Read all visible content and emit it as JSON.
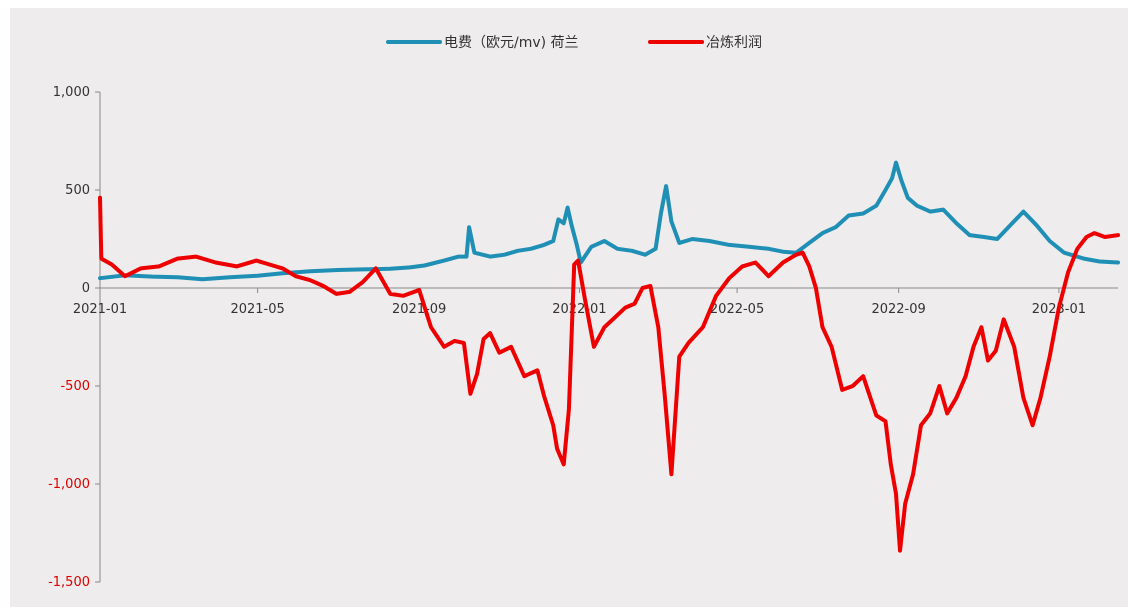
{
  "chart_data": {
    "type": "line",
    "title": "",
    "xlabel": "",
    "ylabel": "",
    "ylim": [
      -1500,
      1000
    ],
    "y_ticks": [
      1000,
      500,
      0,
      -500,
      -1000,
      -1500
    ],
    "y_tick_labels": [
      "1,000",
      "500",
      "0",
      "-500",
      "-1,000",
      "-1,500"
    ],
    "x_range": [
      "2021-01-01",
      "2023-02-15"
    ],
    "x_ticks": [
      "2021-01-01",
      "2021-05-01",
      "2021-09-01",
      "2022-01-01",
      "2022-05-01",
      "2022-09-01",
      "2023-01-01"
    ],
    "x_tick_labels": [
      "2021-01",
      "2021-05",
      "2021-09",
      "2022-01",
      "2022-05",
      "2022-09",
      "2023-01"
    ],
    "legend_position": "top-center",
    "series": [
      {
        "name": "电费（欧元/mv) 荷兰",
        "color": "#1f8fb5",
        "points": [
          [
            "2021-01-01",
            50
          ],
          [
            "2021-01-20",
            65
          ],
          [
            "2021-02-10",
            58
          ],
          [
            "2021-03-01",
            55
          ],
          [
            "2021-03-20",
            45
          ],
          [
            "2021-04-10",
            55
          ],
          [
            "2021-05-01",
            62
          ],
          [
            "2021-05-20",
            75
          ],
          [
            "2021-06-10",
            85
          ],
          [
            "2021-07-01",
            92
          ],
          [
            "2021-07-20",
            95
          ],
          [
            "2021-08-10",
            98
          ],
          [
            "2021-08-25",
            105
          ],
          [
            "2021-09-05",
            115
          ],
          [
            "2021-09-20",
            140
          ],
          [
            "2021-10-01",
            160
          ],
          [
            "2021-10-07",
            160
          ],
          [
            "2021-10-09",
            310
          ],
          [
            "2021-10-13",
            180
          ],
          [
            "2021-10-25",
            160
          ],
          [
            "2021-11-05",
            170
          ],
          [
            "2021-11-15",
            190
          ],
          [
            "2021-11-25",
            200
          ],
          [
            "2021-12-05",
            220
          ],
          [
            "2021-12-12",
            240
          ],
          [
            "2021-12-16",
            350
          ],
          [
            "2021-12-20",
            330
          ],
          [
            "2021-12-23",
            410
          ],
          [
            "2021-12-26",
            320
          ],
          [
            "2021-12-30",
            220
          ],
          [
            "2022-01-02",
            130
          ],
          [
            "2022-01-10",
            210
          ],
          [
            "2022-01-20",
            240
          ],
          [
            "2022-01-30",
            200
          ],
          [
            "2022-02-10",
            190
          ],
          [
            "2022-02-20",
            170
          ],
          [
            "2022-02-28",
            200
          ],
          [
            "2022-03-04",
            380
          ],
          [
            "2022-03-08",
            520
          ],
          [
            "2022-03-12",
            340
          ],
          [
            "2022-03-18",
            230
          ],
          [
            "2022-03-28",
            250
          ],
          [
            "2022-04-10",
            240
          ],
          [
            "2022-04-25",
            220
          ],
          [
            "2022-05-10",
            210
          ],
          [
            "2022-05-25",
            200
          ],
          [
            "2022-06-05",
            185
          ],
          [
            "2022-06-15",
            180
          ],
          [
            "2022-06-25",
            230
          ],
          [
            "2022-07-05",
            280
          ],
          [
            "2022-07-15",
            310
          ],
          [
            "2022-07-25",
            370
          ],
          [
            "2022-08-05",
            380
          ],
          [
            "2022-08-15",
            420
          ],
          [
            "2022-08-22",
            500
          ],
          [
            "2022-08-27",
            560
          ],
          [
            "2022-08-30",
            640
          ],
          [
            "2022-09-03",
            550
          ],
          [
            "2022-09-08",
            460
          ],
          [
            "2022-09-15",
            420
          ],
          [
            "2022-09-25",
            390
          ],
          [
            "2022-10-05",
            400
          ],
          [
            "2022-10-15",
            330
          ],
          [
            "2022-10-25",
            270
          ],
          [
            "2022-11-05",
            260
          ],
          [
            "2022-11-15",
            250
          ],
          [
            "2022-11-25",
            320
          ],
          [
            "2022-12-05",
            390
          ],
          [
            "2022-12-15",
            320
          ],
          [
            "2022-12-25",
            240
          ],
          [
            "2023-01-05",
            180
          ],
          [
            "2023-01-20",
            150
          ],
          [
            "2023-02-01",
            135
          ],
          [
            "2023-02-15",
            130
          ]
        ]
      },
      {
        "name": "冶炼利润",
        "color": "#ee0000",
        "points": [
          [
            "2021-01-01",
            460
          ],
          [
            "2021-01-02",
            150
          ],
          [
            "2021-01-10",
            120
          ],
          [
            "2021-01-20",
            60
          ],
          [
            "2021-02-01",
            100
          ],
          [
            "2021-02-15",
            110
          ],
          [
            "2021-03-01",
            150
          ],
          [
            "2021-03-15",
            160
          ],
          [
            "2021-03-30",
            130
          ],
          [
            "2021-04-15",
            110
          ],
          [
            "2021-04-30",
            140
          ],
          [
            "2021-05-10",
            120
          ],
          [
            "2021-05-20",
            100
          ],
          [
            "2021-05-30",
            60
          ],
          [
            "2021-06-10",
            40
          ],
          [
            "2021-06-20",
            10
          ],
          [
            "2021-06-30",
            -30
          ],
          [
            "2021-07-10",
            -20
          ],
          [
            "2021-07-20",
            30
          ],
          [
            "2021-07-30",
            100
          ],
          [
            "2021-08-10",
            -30
          ],
          [
            "2021-08-20",
            -40
          ],
          [
            "2021-09-01",
            -10
          ],
          [
            "2021-09-10",
            -200
          ],
          [
            "2021-09-20",
            -300
          ],
          [
            "2021-09-28",
            -270
          ],
          [
            "2021-10-05",
            -280
          ],
          [
            "2021-10-10",
            -540
          ],
          [
            "2021-10-15",
            -440
          ],
          [
            "2021-10-20",
            -260
          ],
          [
            "2021-10-25",
            -230
          ],
          [
            "2021-11-01",
            -330
          ],
          [
            "2021-11-10",
            -300
          ],
          [
            "2021-11-20",
            -450
          ],
          [
            "2021-11-30",
            -420
          ],
          [
            "2021-12-05",
            -550
          ],
          [
            "2021-12-12",
            -700
          ],
          [
            "2021-12-15",
            -820
          ],
          [
            "2021-12-20",
            -900
          ],
          [
            "2021-12-24",
            -620
          ],
          [
            "2021-12-28",
            120
          ],
          [
            "2021-12-31",
            140
          ],
          [
            "2022-01-05",
            -50
          ],
          [
            "2022-01-12",
            -300
          ],
          [
            "2022-01-20",
            -200
          ],
          [
            "2022-01-28",
            -150
          ],
          [
            "2022-02-05",
            -100
          ],
          [
            "2022-02-12",
            -80
          ],
          [
            "2022-02-18",
            0
          ],
          [
            "2022-02-24",
            10
          ],
          [
            "2022-03-02",
            -200
          ],
          [
            "2022-03-07",
            -550
          ],
          [
            "2022-03-12",
            -950
          ],
          [
            "2022-03-18",
            -350
          ],
          [
            "2022-03-25",
            -280
          ],
          [
            "2022-04-05",
            -200
          ],
          [
            "2022-04-15",
            -40
          ],
          [
            "2022-04-25",
            50
          ],
          [
            "2022-05-05",
            110
          ],
          [
            "2022-05-15",
            130
          ],
          [
            "2022-05-25",
            60
          ],
          [
            "2022-06-05",
            130
          ],
          [
            "2022-06-15",
            170
          ],
          [
            "2022-06-20",
            180
          ],
          [
            "2022-06-25",
            110
          ],
          [
            "2022-06-30",
            0
          ],
          [
            "2022-07-05",
            -200
          ],
          [
            "2022-07-12",
            -300
          ],
          [
            "2022-07-20",
            -520
          ],
          [
            "2022-07-28",
            -500
          ],
          [
            "2022-08-05",
            -450
          ],
          [
            "2022-08-10",
            -550
          ],
          [
            "2022-08-15",
            -650
          ],
          [
            "2022-08-22",
            -680
          ],
          [
            "2022-08-26",
            -900
          ],
          [
            "2022-08-30",
            -1050
          ],
          [
            "2022-09-02",
            -1340
          ],
          [
            "2022-09-06",
            -1100
          ],
          [
            "2022-09-12",
            -950
          ],
          [
            "2022-09-18",
            -700
          ],
          [
            "2022-09-25",
            -640
          ],
          [
            "2022-10-02",
            -500
          ],
          [
            "2022-10-08",
            -640
          ],
          [
            "2022-10-15",
            -560
          ],
          [
            "2022-10-22",
            -450
          ],
          [
            "2022-10-28",
            -300
          ],
          [
            "2022-11-03",
            -200
          ],
          [
            "2022-11-08",
            -370
          ],
          [
            "2022-11-14",
            -320
          ],
          [
            "2022-11-20",
            -160
          ],
          [
            "2022-11-28",
            -300
          ],
          [
            "2022-12-05",
            -560
          ],
          [
            "2022-12-12",
            -700
          ],
          [
            "2022-12-18",
            -560
          ],
          [
            "2022-12-25",
            -350
          ],
          [
            "2023-01-01",
            -100
          ],
          [
            "2023-01-08",
            80
          ],
          [
            "2023-01-15",
            200
          ],
          [
            "2023-01-22",
            260
          ],
          [
            "2023-01-28",
            280
          ],
          [
            "2023-02-05",
            260
          ],
          [
            "2023-02-15",
            270
          ]
        ]
      }
    ]
  }
}
